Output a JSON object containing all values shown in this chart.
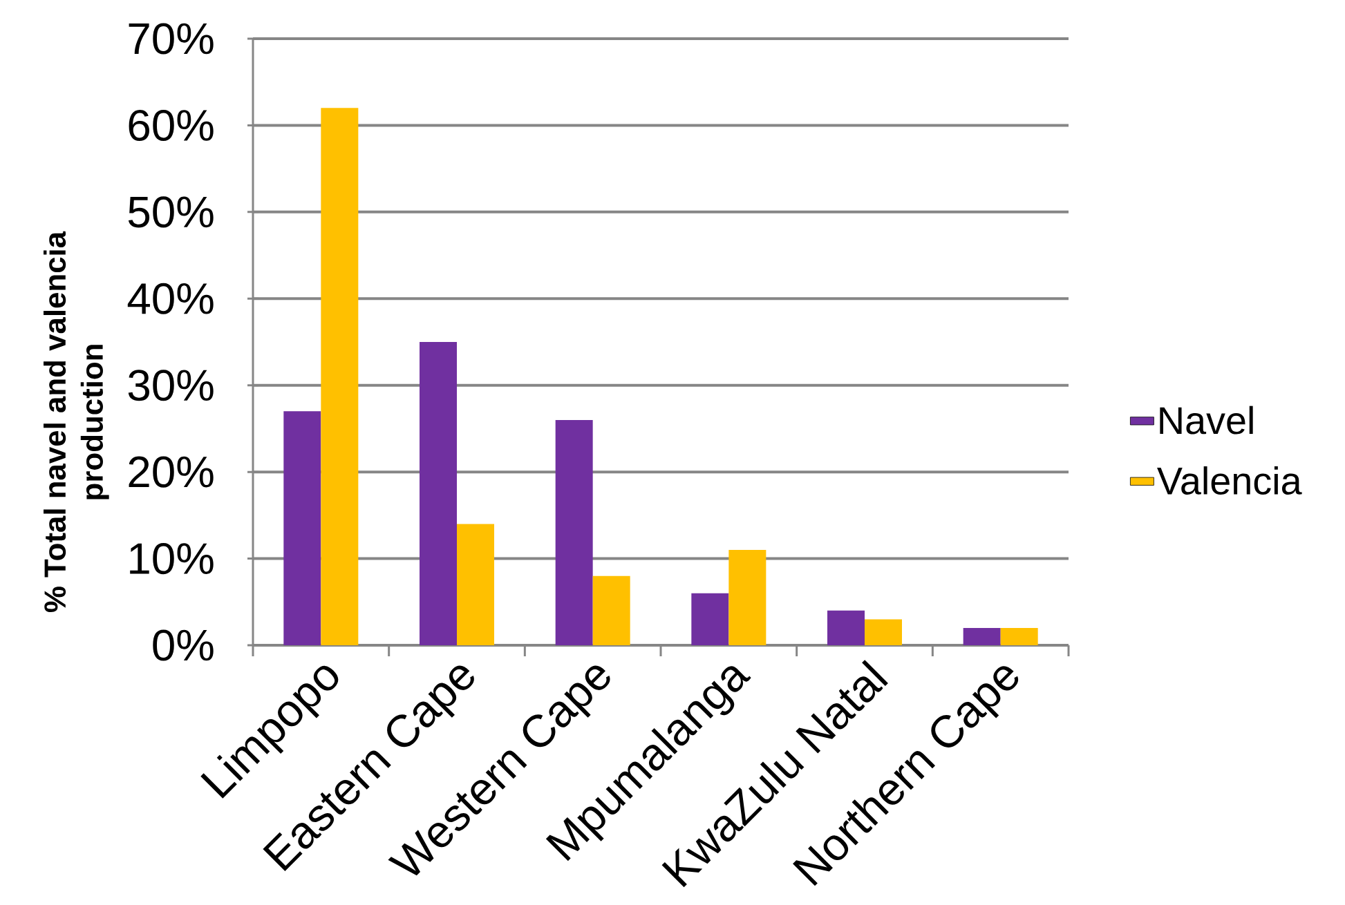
{
  "chart_data": {
    "type": "bar",
    "ylabel": "% Total navel and valencia production",
    "categories": [
      "Limpopo",
      "Eastern Cape",
      "Western Cape",
      "Mpumalanga",
      "KwaZulu Natal",
      "Northern Cape"
    ],
    "series": [
      {
        "name": "Navel",
        "color": "#7030a0",
        "values": [
          27,
          35,
          26,
          6,
          4,
          2
        ]
      },
      {
        "name": "Valencia",
        "color": "#ffc000",
        "values": [
          62,
          14,
          8,
          11,
          3,
          2
        ]
      }
    ],
    "ylim": [
      0,
      70
    ],
    "yticks": [
      {
        "value": 0,
        "label": "0%"
      },
      {
        "value": 10,
        "label": "10%"
      },
      {
        "value": 20,
        "label": "20%"
      },
      {
        "value": 30,
        "label": "30%"
      },
      {
        "value": 40,
        "label": "40%"
      },
      {
        "value": 50,
        "label": "50%"
      },
      {
        "value": 60,
        "label": "60%"
      },
      {
        "value": 70,
        "label": "70%"
      }
    ],
    "grid": "y",
    "legend": "right"
  }
}
